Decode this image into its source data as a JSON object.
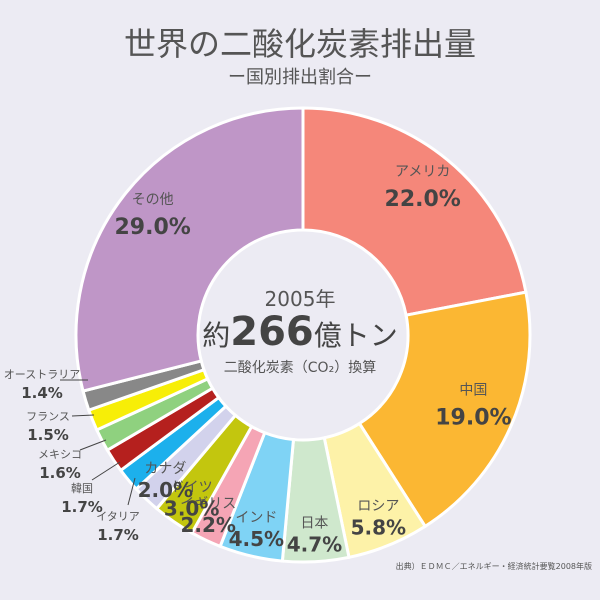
{
  "header": {
    "title": "世界の二酸化炭素排出量",
    "subtitle": "ー国別排出割合ー"
  },
  "center": {
    "year": "2005年",
    "prefix": "約",
    "number": "266",
    "suffix": "億トン",
    "note": "二酸化炭素（CO₂）換算"
  },
  "source": "出典）ＥＤＭＣ／エネルギー・経済統計要覧2008年版",
  "chart_data": {
    "type": "pie",
    "title": "世界の二酸化炭素排出量",
    "subtitle": "ー国別排出割合ー",
    "unit": "%",
    "slices": [
      {
        "label": "アメリカ",
        "value": 22.0,
        "display": "22.0%",
        "color": "#f5877a"
      },
      {
        "label": "中国",
        "value": 19.0,
        "display": "19.0%",
        "color": "#fbb733"
      },
      {
        "label": "ロシア",
        "value": 5.8,
        "display": "5.8%",
        "color": "#fdf2a8"
      },
      {
        "label": "日本",
        "value": 4.7,
        "display": "4.7%",
        "color": "#cfe8cd"
      },
      {
        "label": "インド",
        "value": 4.5,
        "display": "4.5%",
        "color": "#7fd3f5"
      },
      {
        "label": "イギリス",
        "value": 2.2,
        "display": "2.2%",
        "color": "#f5a5b5"
      },
      {
        "label": "ドイツ",
        "value": 3.0,
        "display": "3.0%",
        "color": "#c3c60e"
      },
      {
        "label": "カナダ",
        "value": 2.0,
        "display": "2.0%",
        "color": "#d2d2ec"
      },
      {
        "label": "イタリア",
        "value": 1.7,
        "display": "1.7%",
        "color": "#1cb0ec"
      },
      {
        "label": "韓国",
        "value": 1.7,
        "display": "1.7%",
        "color": "#b5201e"
      },
      {
        "label": "メキシコ",
        "value": 1.6,
        "display": "1.6%",
        "color": "#8fd17f"
      },
      {
        "label": "フランス",
        "value": 1.5,
        "display": "1.5%",
        "color": "#f7ee07"
      },
      {
        "label": "オーストラリア",
        "value": 1.4,
        "display": "1.4%",
        "color": "#888888"
      },
      {
        "label": "その他",
        "value": 29.0,
        "display": "29.0%",
        "color": "#bf96c7"
      }
    ]
  }
}
